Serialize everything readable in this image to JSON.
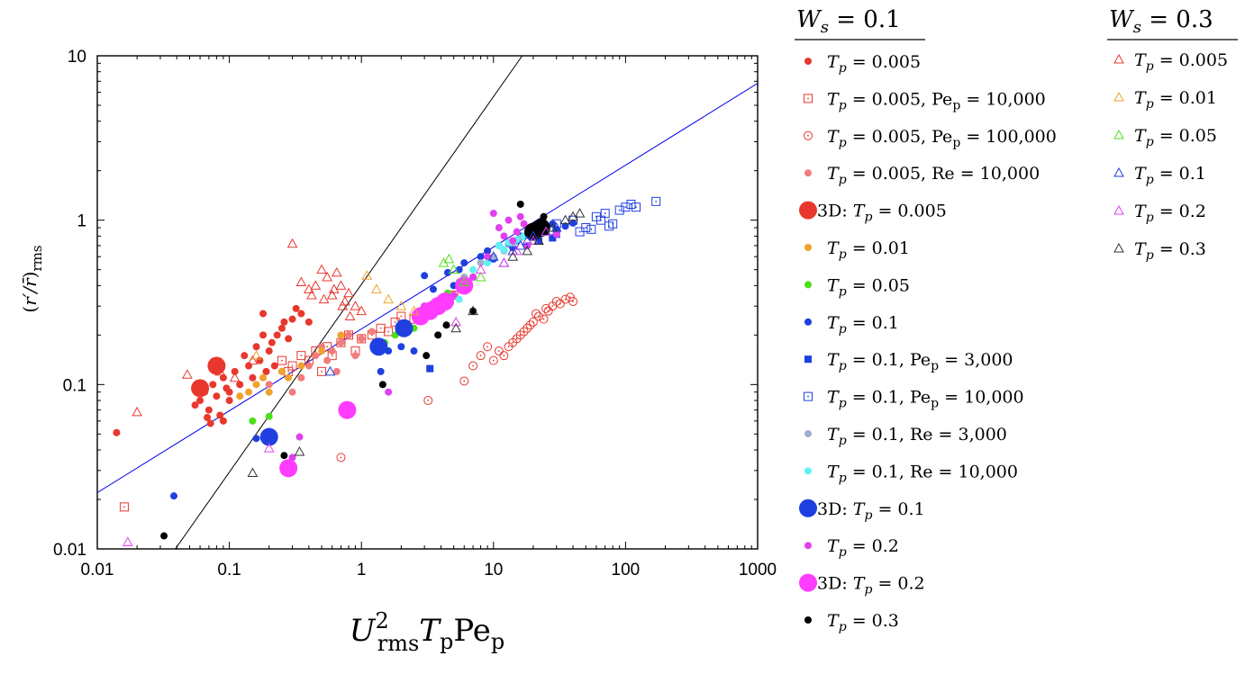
{
  "chart_data": {
    "type": "scatter",
    "title": "",
    "xlabel": "U²_rms T_p Pe_p",
    "ylabel": "(r'/r̄)_rms",
    "xscale": "log",
    "yscale": "log",
    "xlim": [
      0.01,
      1000
    ],
    "ylim": [
      0.01,
      10
    ],
    "x_ticks": [
      {
        "value": 0.01,
        "label": "0.01"
      },
      {
        "value": 0.1,
        "label": "0.1"
      },
      {
        "value": 1,
        "label": "1"
      },
      {
        "value": 10,
        "label": "10"
      },
      {
        "value": 100,
        "label": "100"
      },
      {
        "value": 1000,
        "label": "1000"
      }
    ],
    "y_ticks": [
      {
        "value": 0.01,
        "label": "0.01"
      },
      {
        "value": 0.1,
        "label": "0.1"
      },
      {
        "value": 1,
        "label": "1"
      },
      {
        "value": 10,
        "label": "10"
      }
    ],
    "legend_groups": [
      {
        "title": "W_s = 0.1",
        "placement": "right"
      },
      {
        "title": "W_s = 0.3",
        "placement": "far-right"
      }
    ],
    "fit_lines": [
      {
        "name": "steep fit",
        "color": "#000000",
        "x": [
          0.039,
          16.5
        ],
        "y": [
          0.01,
          10
        ]
      },
      {
        "name": "shallow fit",
        "color": "#0000ee",
        "x": [
          0.01,
          1000
        ],
        "y": [
          0.022,
          6.8
        ]
      }
    ],
    "series": [
      {
        "name": "Tp = 0.005",
        "group": 0,
        "marker": "circle-filled",
        "size": "small",
        "color": "#e8382e",
        "x": [
          0.014,
          0.055,
          0.06,
          0.065,
          0.07,
          0.075,
          0.08,
          0.085,
          0.09,
          0.095,
          0.1,
          0.11,
          0.12,
          0.13,
          0.14,
          0.15,
          0.16,
          0.17,
          0.18,
          0.19,
          0.2,
          0.21,
          0.22,
          0.23,
          0.25,
          0.26,
          0.28,
          0.3,
          0.35,
          0.4,
          0.32,
          0.18,
          0.09,
          0.072,
          0.068,
          0.1
        ],
        "y": [
          0.051,
          0.075,
          0.08,
          0.09,
          0.07,
          0.1,
          0.085,
          0.065,
          0.11,
          0.095,
          0.08,
          0.12,
          0.1,
          0.15,
          0.13,
          0.11,
          0.17,
          0.14,
          0.2,
          0.12,
          0.16,
          0.18,
          0.13,
          0.2,
          0.22,
          0.24,
          0.19,
          0.25,
          0.27,
          0.24,
          0.29,
          0.27,
          0.06,
          0.058,
          0.063,
          0.09
        ]
      },
      {
        "name": "Tp = 0.005, Pe_p = 10,000",
        "group": 0,
        "marker": "square-open-dot",
        "size": "small",
        "color": "#e8382e",
        "x": [
          0.016,
          0.25,
          0.28,
          0.3,
          0.35,
          0.4,
          0.45,
          0.5,
          0.55,
          0.6,
          0.7,
          0.8,
          0.9,
          1.0,
          1.2,
          1.4,
          1.6,
          1.8,
          2.0,
          2.5,
          3,
          3.5,
          4,
          5
        ],
        "y": [
          0.018,
          0.14,
          0.12,
          0.13,
          0.15,
          0.14,
          0.16,
          0.12,
          0.17,
          0.15,
          0.18,
          0.2,
          0.16,
          0.19,
          0.2,
          0.22,
          0.21,
          0.24,
          0.26,
          0.25,
          0.28,
          0.3,
          0.32,
          0.35
        ]
      },
      {
        "name": "Tp = 0.005, Pe_p = 100,000",
        "group": 0,
        "marker": "circle-open-dot",
        "size": "small",
        "color": "#e8382e",
        "x": [
          0.7,
          3.2,
          6,
          7,
          8,
          9,
          10,
          11,
          12,
          13,
          14,
          15,
          16,
          17,
          18,
          19,
          20,
          22,
          24,
          26,
          28,
          30,
          32,
          35,
          38,
          40,
          25,
          21
        ],
        "y": [
          0.036,
          0.08,
          0.105,
          0.13,
          0.15,
          0.17,
          0.14,
          0.16,
          0.15,
          0.17,
          0.18,
          0.19,
          0.2,
          0.21,
          0.22,
          0.23,
          0.24,
          0.26,
          0.25,
          0.28,
          0.3,
          0.32,
          0.31,
          0.33,
          0.34,
          0.32,
          0.29,
          0.27
        ]
      },
      {
        "name": "Tp = 0.005, Re = 10,000",
        "group": 0,
        "marker": "circle-filled",
        "size": "small",
        "color": "#f07d7d",
        "x": [
          0.2,
          0.25,
          0.3,
          0.35,
          0.4,
          0.45,
          0.5,
          0.55,
          0.6,
          0.7,
          0.8,
          0.9,
          1.0,
          1.2,
          0.65
        ],
        "y": [
          0.1,
          0.12,
          0.09,
          0.11,
          0.13,
          0.15,
          0.17,
          0.14,
          0.16,
          0.18,
          0.2,
          0.15,
          0.19,
          0.21,
          0.12
        ]
      },
      {
        "name": "3D: Tp = 0.005",
        "group": 0,
        "marker": "circle-filled",
        "size": "large",
        "color": "#e8382e",
        "x": [
          0.06,
          0.08
        ],
        "y": [
          0.095,
          0.13
        ]
      },
      {
        "name": "Tp = 0.01",
        "group": 0,
        "marker": "circle-filled",
        "size": "small",
        "color": "#f0a22a",
        "x": [
          0.12,
          0.14,
          0.16,
          0.18,
          0.2,
          0.25,
          0.28,
          0.35,
          0.5,
          0.7
        ],
        "y": [
          0.085,
          0.09,
          0.1,
          0.11,
          0.09,
          0.12,
          0.11,
          0.13,
          0.16,
          0.2
        ]
      },
      {
        "name": "Tp = 0.05",
        "group": 0,
        "marker": "circle-filled",
        "size": "small",
        "color": "#4de01a",
        "x": [
          0.15,
          0.2,
          1.5,
          1.8,
          2,
          2.5,
          3,
          3.5,
          4,
          4.5,
          5,
          5.5,
          6
        ],
        "y": [
          0.06,
          0.064,
          0.18,
          0.2,
          0.21,
          0.22,
          0.25,
          0.3,
          0.33,
          0.36,
          0.4,
          0.42,
          0.45
        ]
      },
      {
        "name": "Tp = 0.1",
        "group": 0,
        "marker": "circle-filled",
        "size": "small",
        "color": "#1f3fe0",
        "x": [
          0.038,
          0.16,
          1.4,
          1.6,
          2,
          2.5,
          3,
          3.5,
          4,
          4.5,
          5,
          5.5,
          6,
          7,
          8,
          9,
          10,
          11,
          12,
          13,
          14,
          15,
          16,
          18,
          20,
          22,
          25,
          28,
          30,
          35,
          40
        ],
        "y": [
          0.021,
          0.047,
          0.12,
          0.16,
          0.17,
          0.16,
          0.46,
          0.38,
          0.32,
          0.48,
          0.4,
          0.5,
          0.55,
          0.45,
          0.6,
          0.65,
          0.58,
          0.7,
          0.66,
          0.72,
          0.68,
          0.75,
          0.8,
          0.7,
          0.85,
          0.82,
          0.9,
          0.95,
          0.88,
          0.92,
          0.96
        ]
      },
      {
        "name": "Tp = 0.1, Pe_p = 3,000",
        "group": 0,
        "marker": "square-filled",
        "size": "small",
        "color": "#1f3fe0",
        "x": [
          3.3,
          20,
          22,
          25,
          28,
          30
        ],
        "y": [
          0.125,
          0.8,
          0.75,
          0.85,
          0.78,
          0.82
        ]
      },
      {
        "name": "Tp = 0.1, Pe_p = 10,000",
        "group": 0,
        "marker": "square-open-dot",
        "size": "small",
        "color": "#1f3fe0",
        "x": [
          30,
          40,
          50,
          60,
          70,
          80,
          90,
          100,
          110,
          120,
          170,
          45,
          55,
          65,
          75
        ],
        "y": [
          0.95,
          1.0,
          0.9,
          1.05,
          1.1,
          0.95,
          1.15,
          1.2,
          1.25,
          1.2,
          1.3,
          0.85,
          0.88,
          1.0,
          0.92
        ]
      },
      {
        "name": "Tp = 0.1, Re = 3,000",
        "group": 0,
        "marker": "circle-filled",
        "size": "small",
        "color": "#9fb0cf",
        "x": [
          6,
          8,
          10,
          12,
          14,
          16
        ],
        "y": [
          0.45,
          0.55,
          0.6,
          0.65,
          0.72,
          0.78
        ]
      },
      {
        "name": "Tp = 0.1, Re = 10,000",
        "group": 0,
        "marker": "circle-filled",
        "size": "small",
        "color": "#5ef2f2",
        "x": [
          5.5,
          7,
          9,
          11,
          13,
          15,
          17,
          12
        ],
        "y": [
          0.33,
          0.5,
          0.55,
          0.7,
          0.73,
          0.76,
          0.8,
          0.66
        ]
      },
      {
        "name": "3D: Tp = 0.1",
        "group": 0,
        "marker": "circle-filled",
        "size": "large",
        "color": "#1f3fe0",
        "x": [
          0.2,
          1.35,
          2.1
        ],
        "y": [
          0.048,
          0.17,
          0.22
        ]
      },
      {
        "name": "Tp = 0.2",
        "group": 0,
        "marker": "circle-filled",
        "size": "small",
        "color": "#e23ff0",
        "x": [
          0.3,
          0.34,
          1.6,
          3,
          5,
          7,
          9,
          10,
          11,
          12,
          13,
          14,
          15,
          16,
          17,
          18,
          20,
          25,
          30
        ],
        "y": [
          0.036,
          0.048,
          0.09,
          0.3,
          0.35,
          0.45,
          0.6,
          1.1,
          0.9,
          0.8,
          1.0,
          0.75,
          0.85,
          1.05,
          0.95,
          0.7,
          0.88,
          0.9,
          0.82
        ]
      },
      {
        "name": "3D: Tp = 0.2",
        "group": 0,
        "marker": "circle-filled",
        "size": "large",
        "color": "#ff3cff",
        "x": [
          0.28,
          0.78,
          2.8,
          3.3,
          3.8,
          4.3,
          6
        ],
        "y": [
          0.031,
          0.07,
          0.26,
          0.28,
          0.3,
          0.32,
          0.4
        ]
      },
      {
        "name": "Tp = 0.3",
        "group": 0,
        "marker": "circle-filled",
        "size": "small",
        "color": "#000000",
        "x": [
          0.032,
          0.26,
          1.45,
          3.1,
          3.8,
          4.4,
          7,
          16,
          20,
          24
        ],
        "y": [
          0.012,
          0.037,
          0.1,
          0.15,
          0.2,
          0.23,
          0.28,
          1.25,
          0.8,
          1.05
        ]
      },
      {
        "name": "3D: Tp = 0.3",
        "group": 0,
        "marker": "circle-filled",
        "size": "large",
        "color": "#000000",
        "in_legend": false,
        "x": [
          20,
          23
        ],
        "y": [
          0.85,
          0.9
        ]
      },
      {
        "name": "Tp = 0.005",
        "group": 1,
        "marker": "triangle-open",
        "size": "small",
        "color": "#e8382e",
        "x": [
          0.02,
          0.048,
          0.085,
          0.11,
          0.15,
          0.3,
          0.35,
          0.4,
          0.45,
          0.5,
          0.55,
          0.6,
          0.65,
          0.7,
          0.75,
          0.8,
          0.9,
          1.0,
          0.52,
          0.62,
          0.72,
          0.42,
          0.82
        ],
        "y": [
          0.068,
          0.115,
          0.12,
          0.11,
          0.14,
          0.72,
          0.42,
          0.38,
          0.4,
          0.5,
          0.45,
          0.35,
          0.48,
          0.4,
          0.32,
          0.36,
          0.3,
          0.28,
          0.33,
          0.38,
          0.3,
          0.35,
          0.26
        ]
      },
      {
        "name": "Tp = 0.01",
        "group": 1,
        "marker": "triangle-open",
        "size": "small",
        "color": "#f0a22a",
        "x": [
          0.16,
          1.1,
          1.3,
          1.6,
          2.0,
          2.5
        ],
        "y": [
          0.15,
          0.46,
          0.38,
          0.33,
          0.3,
          0.28
        ]
      },
      {
        "name": "Tp = 0.05",
        "group": 1,
        "marker": "triangle-open",
        "size": "small",
        "color": "#4de01a",
        "x": [
          4.2,
          4.6,
          5,
          6,
          8
        ],
        "y": [
          0.55,
          0.58,
          0.5,
          0.42,
          0.45
        ]
      },
      {
        "name": "Tp = 0.1",
        "group": 1,
        "marker": "triangle-open",
        "size": "small",
        "color": "#1f3fe0",
        "x": [
          0.58,
          10,
          12,
          14,
          16,
          18,
          20,
          25,
          30
        ],
        "y": [
          0.12,
          0.6,
          0.55,
          0.65,
          0.7,
          0.75,
          0.8,
          0.85,
          0.9
        ]
      },
      {
        "name": "Tp = 0.2",
        "group": 1,
        "marker": "triangle-open",
        "size": "small",
        "color": "#e23ff0",
        "x": [
          0.017,
          0.2,
          5.2,
          8,
          12,
          15,
          20,
          25
        ],
        "y": [
          0.011,
          0.041,
          0.24,
          0.5,
          0.55,
          0.65,
          0.75,
          0.85
        ]
      },
      {
        "name": "Tp = 0.3",
        "group": 1,
        "marker": "triangle-open",
        "size": "small",
        "color": "#333333",
        "x": [
          0.15,
          0.34,
          5.2,
          7,
          14,
          18,
          22,
          28,
          35,
          40,
          45
        ],
        "y": [
          0.029,
          0.039,
          0.22,
          0.28,
          0.6,
          0.65,
          0.75,
          0.9,
          1.0,
          1.05,
          1.1
        ]
      }
    ],
    "legend_entries": [
      {
        "group": 0,
        "series": 0,
        "base": "T",
        "sub": "p",
        "rest": " = 0.005"
      },
      {
        "group": 0,
        "series": 1,
        "base": "T",
        "sub": "p",
        "rest": " = 0.005,  Pe",
        "sub2": "p",
        "rest2": " = 10,000"
      },
      {
        "group": 0,
        "series": 2,
        "base": "T",
        "sub": "p",
        "rest": " = 0.005,  Pe",
        "sub2": "p",
        "rest2": " = 100,000"
      },
      {
        "group": 0,
        "series": 3,
        "base": "T",
        "sub": "p",
        "rest": " = 0.005,  Re = 10,000"
      },
      {
        "group": 0,
        "series": 4,
        "prefix": "3D: ",
        "base": "T",
        "sub": "p",
        "rest": " = 0.005"
      },
      {
        "group": 0,
        "series": 5,
        "base": "T",
        "sub": "p",
        "rest": " = 0.01"
      },
      {
        "group": 0,
        "series": 6,
        "base": "T",
        "sub": "p",
        "rest": " = 0.05"
      },
      {
        "group": 0,
        "series": 7,
        "base": "T",
        "sub": "p",
        "rest": " = 0.1"
      },
      {
        "group": 0,
        "series": 8,
        "base": "T",
        "sub": "p",
        "rest": " = 0.1,  Pe",
        "sub2": "p",
        "rest2": " = 3,000"
      },
      {
        "group": 0,
        "series": 9,
        "base": "T",
        "sub": "p",
        "rest": " = 0.1,  Pe",
        "sub2": "p",
        "rest2": " = 10,000"
      },
      {
        "group": 0,
        "series": 10,
        "base": "T",
        "sub": "p",
        "rest": " = 0.1,  Re = 3,000"
      },
      {
        "group": 0,
        "series": 11,
        "base": "T",
        "sub": "p",
        "rest": " = 0.1,  Re = 10,000"
      },
      {
        "group": 0,
        "series": 12,
        "prefix": "3D: ",
        "base": "T",
        "sub": "p",
        "rest": " = 0.1"
      },
      {
        "group": 0,
        "series": 13,
        "base": "T",
        "sub": "p",
        "rest": " = 0.2"
      },
      {
        "group": 0,
        "series": 14,
        "prefix": "3D: ",
        "base": "T",
        "sub": "p",
        "rest": " = 0.2"
      },
      {
        "group": 0,
        "series": 15,
        "base": "T",
        "sub": "p",
        "rest": " = 0.3"
      },
      {
        "group": 1,
        "series": 17,
        "base": "T",
        "sub": "p",
        "rest": " = 0.005"
      },
      {
        "group": 1,
        "series": 18,
        "base": "T",
        "sub": "p",
        "rest": " = 0.01"
      },
      {
        "group": 1,
        "series": 19,
        "base": "T",
        "sub": "p",
        "rest": " = 0.05"
      },
      {
        "group": 1,
        "series": 20,
        "base": "T",
        "sub": "p",
        "rest": " = 0.1"
      },
      {
        "group": 1,
        "series": 21,
        "base": "T",
        "sub": "p",
        "rest": " = 0.2"
      },
      {
        "group": 1,
        "series": 22,
        "base": "T",
        "sub": "p",
        "rest": " = 0.3"
      }
    ]
  }
}
